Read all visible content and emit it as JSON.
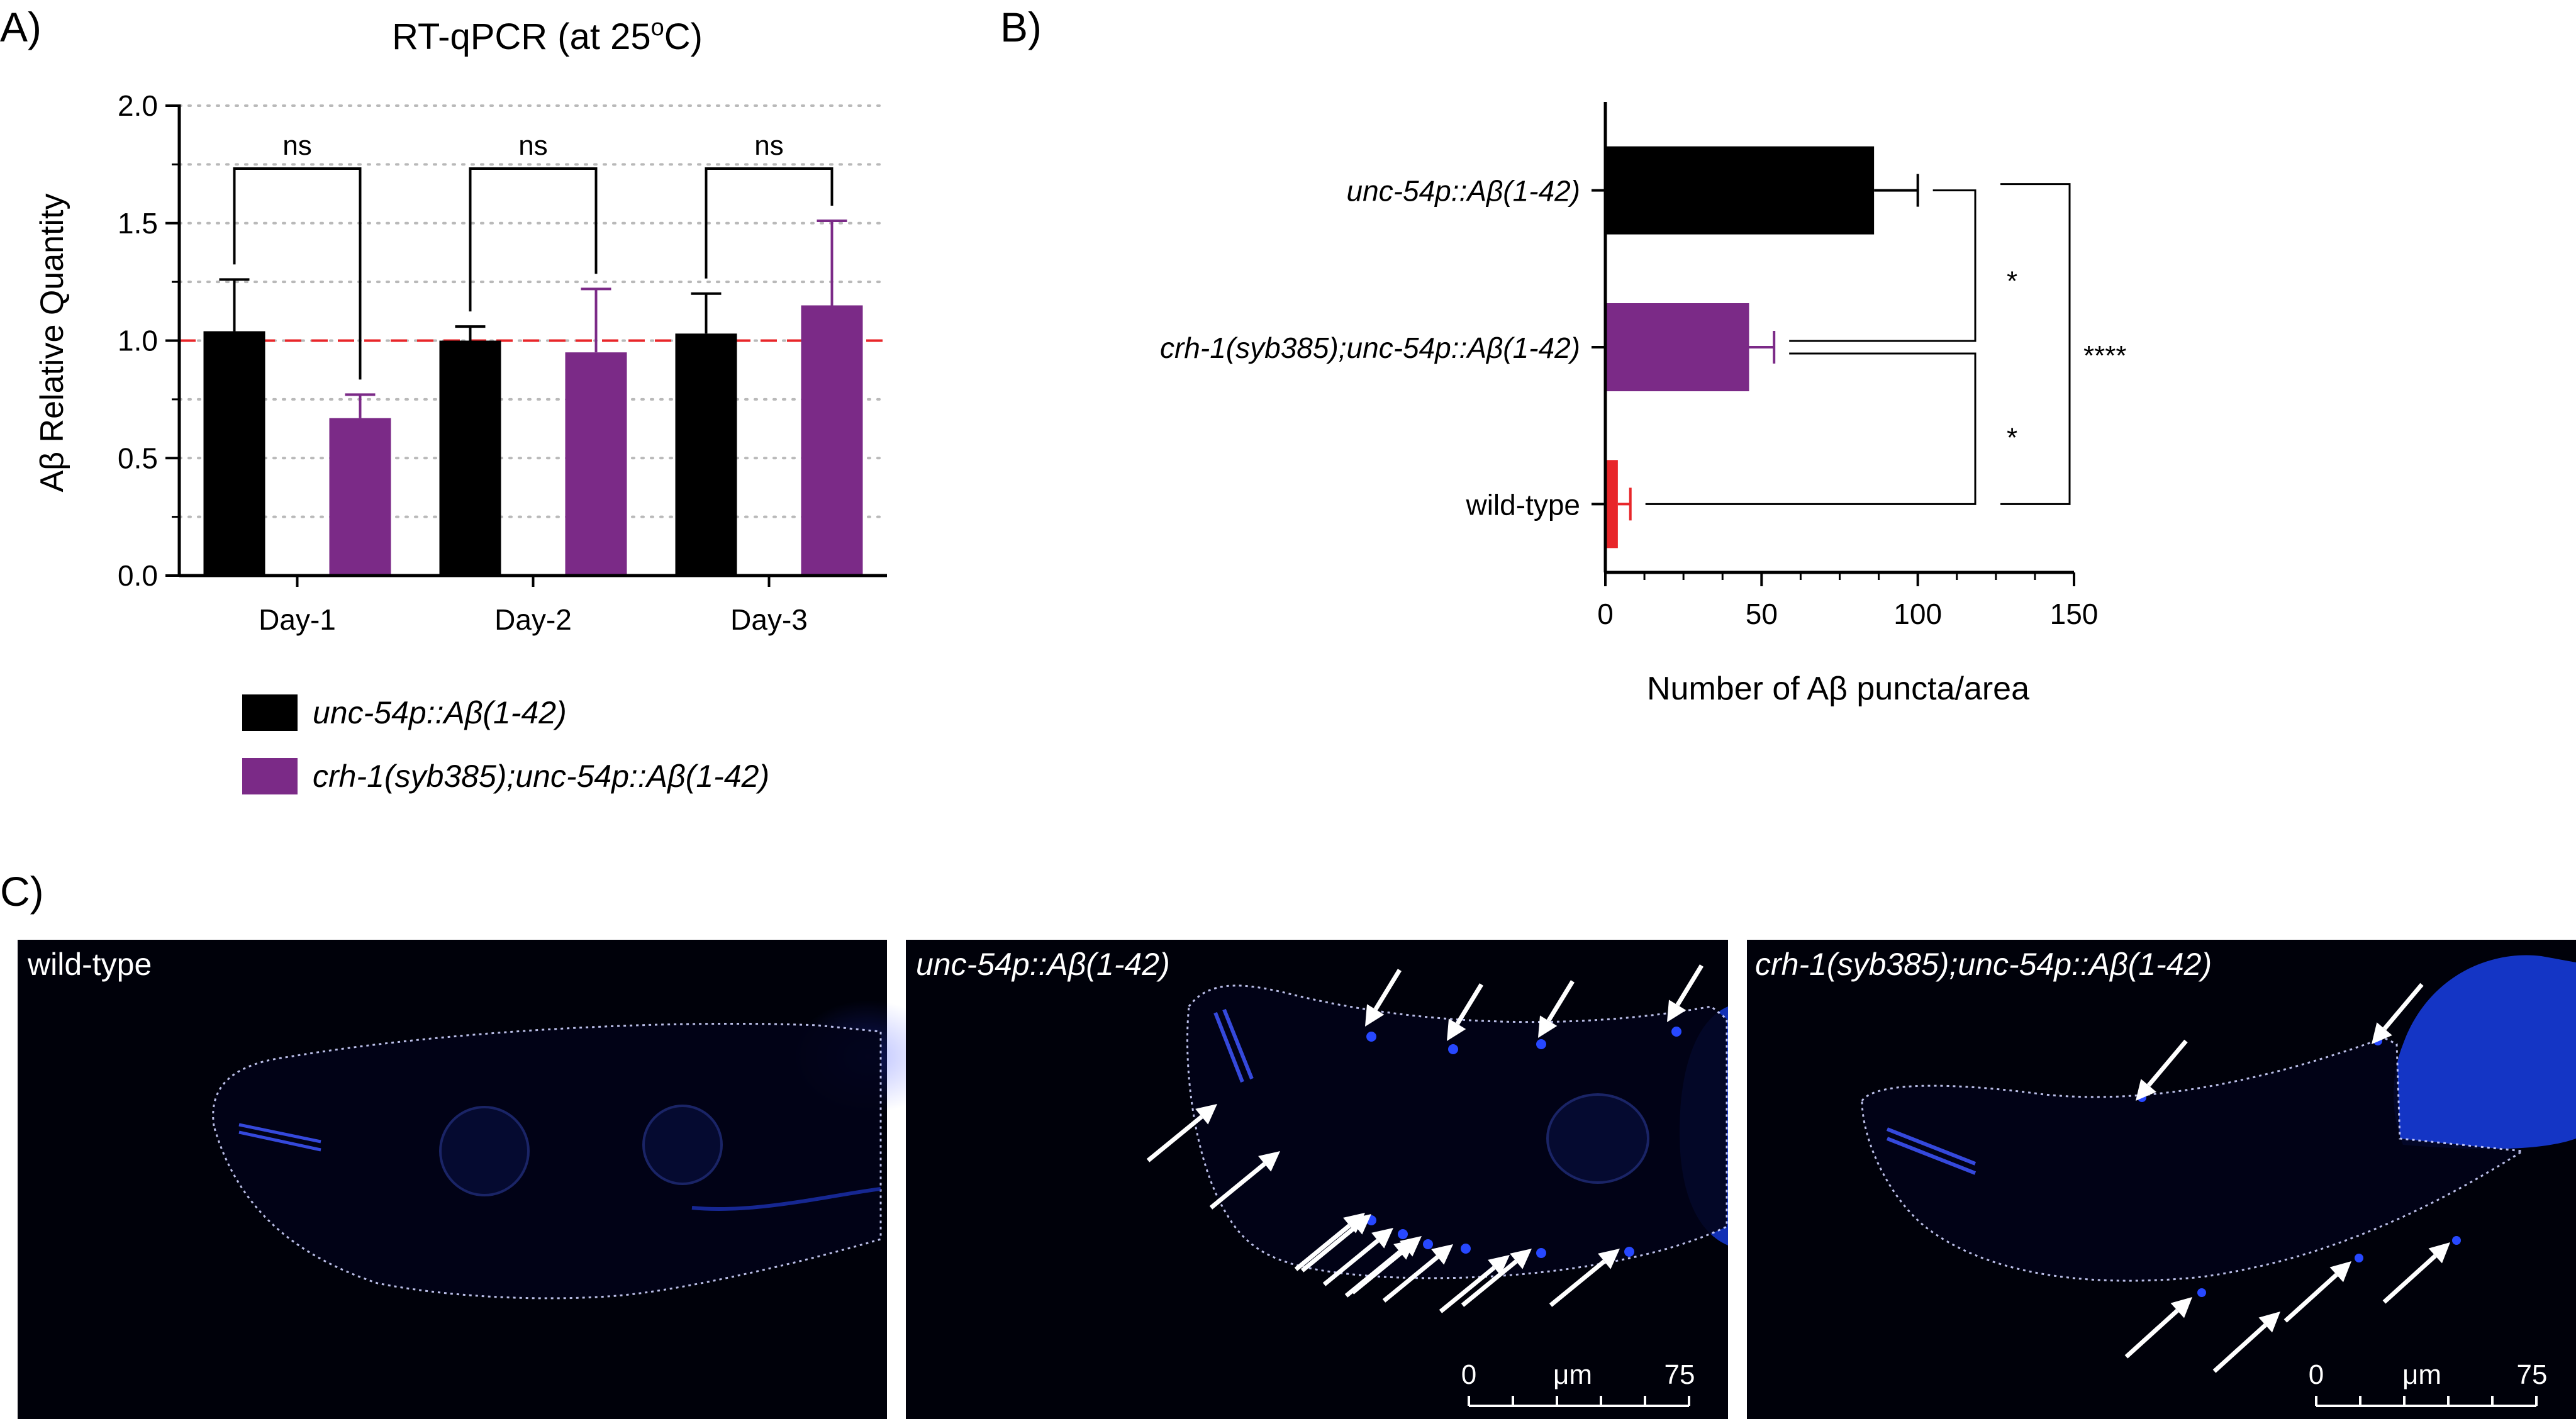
{
  "panel_labels": {
    "a": "A)",
    "b": "B)",
    "c": "C)"
  },
  "colors": {
    "black_series": "#000000",
    "purple_series": "#7b2a87",
    "red_bar": "#e8262a",
    "reference_line": "#e8262a",
    "gridline": "#b9b9b9",
    "image_background": "#00010a",
    "signal": "#2748ff",
    "annotation_arrow": "#ffffff"
  },
  "chart_data": [
    {
      "panel": "A)",
      "type": "bar",
      "title": "RT-qPCR (at 25",
      "title_super": "o",
      "title_end": "C)",
      "ylabel": "Aβ Relative Quantity",
      "xlabel": "",
      "categories": [
        "Day-1",
        "Day-2",
        "Day-3"
      ],
      "series": [
        {
          "name": "unc-54p::Aβ(1-42)",
          "color": "#000000",
          "values": [
            1.04,
            1.0,
            1.03
          ],
          "error": [
            0.22,
            0.06,
            0.17
          ]
        },
        {
          "name": "crh-1(syb385);unc-54p::Aβ(1-42)",
          "color": "#7b2a87",
          "values": [
            0.67,
            0.95,
            1.15
          ],
          "error": [
            0.1,
            0.27,
            0.36
          ]
        }
      ],
      "ylim": [
        0,
        2.0
      ],
      "yticks": [
        "0.0",
        "0.5",
        "1.0",
        "1.5",
        "2.0"
      ],
      "grid": {
        "enabled": true,
        "style": "dotted horizontal",
        "step": 0.25
      },
      "reference_line": {
        "y": 1.0,
        "style": "dashed"
      },
      "significance": [
        {
          "category": "Day-1",
          "label": "ns"
        },
        {
          "category": "Day-2",
          "label": "ns"
        },
        {
          "category": "Day-3",
          "label": "ns"
        }
      ],
      "legend_placement": "below"
    },
    {
      "panel": "B)",
      "type": "bar",
      "orientation": "horizontal",
      "xlabel": "Number of Aβ puncta/area",
      "ylabel": "",
      "categories": [
        "unc-54p::Aβ(1-42)",
        "crh-1(syb385);unc-54p::Aβ(1-42)",
        "wild-type"
      ],
      "category_italic": [
        true,
        true,
        false
      ],
      "values": [
        86,
        46,
        4
      ],
      "error": [
        14,
        8,
        4
      ],
      "colors": [
        "#000000",
        "#7b2a87",
        "#e8262a"
      ],
      "xlim": [
        0,
        150
      ],
      "xticks": [
        "0",
        "50",
        "100",
        "150"
      ],
      "grid": {
        "enabled": false
      },
      "significance": [
        {
          "between": [
            "unc-54p::Aβ(1-42)",
            "crh-1(syb385);unc-54p::Aβ(1-42)"
          ],
          "label": "*"
        },
        {
          "between": [
            "crh-1(syb385);unc-54p::Aβ(1-42)",
            "wild-type"
          ],
          "label": "*"
        },
        {
          "between": [
            "unc-54p::Aβ(1-42)",
            "wild-type"
          ],
          "label": "****"
        }
      ]
    }
  ],
  "micrographs": [
    {
      "label": "wild-type",
      "label_italic": false,
      "arrow_count": 0,
      "scale_bar": null
    },
    {
      "label": "unc-54p::Aβ(1-42)",
      "label_italic": true,
      "arrow_count": 15,
      "scale_bar": {
        "start": "0",
        "unit": "μm",
        "end": "75"
      }
    },
    {
      "label": "crh-1(syb385);unc-54p::Aβ(1-42)",
      "label_italic": true,
      "arrow_count": 6,
      "scale_bar": {
        "start": "0",
        "unit": "μm",
        "end": "75"
      }
    }
  ]
}
